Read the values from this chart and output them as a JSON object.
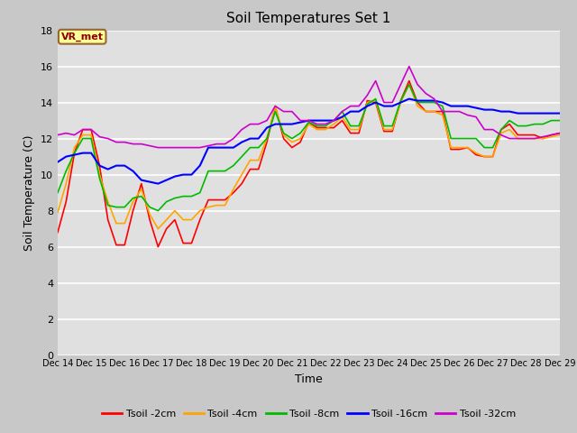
{
  "title": "Soil Temperatures Set 1",
  "xlabel": "Time",
  "ylabel": "Soil Temperature (C)",
  "ylim": [
    0,
    18
  ],
  "yticks": [
    0,
    2,
    4,
    6,
    8,
    10,
    12,
    14,
    16,
    18
  ],
  "fig_bg_color": "#c8c8c8",
  "plot_bg_color": "#e0e0e0",
  "annotation_text": "VR_met",
  "annotation_color": "#8B0000",
  "annotation_bg": "#FFFF99",
  "series_names": [
    "Tsoil -2cm",
    "Tsoil -4cm",
    "Tsoil -8cm",
    "Tsoil -16cm",
    "Tsoil -32cm"
  ],
  "series_colors": [
    "#FF0000",
    "#FFA500",
    "#00BB00",
    "#0000FF",
    "#CC00CC"
  ],
  "series_lw": [
    1.2,
    1.2,
    1.2,
    1.5,
    1.2
  ],
  "x_days": [
    14,
    14.25,
    14.5,
    14.75,
    15,
    15.25,
    15.5,
    15.75,
    16,
    16.25,
    16.5,
    16.75,
    17,
    17.25,
    17.5,
    17.75,
    18,
    18.25,
    18.5,
    18.75,
    19,
    19.25,
    19.5,
    19.75,
    20,
    20.25,
    20.5,
    20.75,
    21,
    21.25,
    21.5,
    21.75,
    22,
    22.25,
    22.5,
    22.75,
    23,
    23.25,
    23.5,
    23.75,
    24,
    24.25,
    24.5,
    24.75,
    25,
    25.25,
    25.5,
    25.75,
    26,
    26.25,
    26.5,
    26.75,
    27,
    27.25,
    27.5,
    27.75,
    28,
    28.25,
    28.5,
    28.75,
    29
  ],
  "tsoil_2cm": [
    6.8,
    8.5,
    11.2,
    12.5,
    12.5,
    10.5,
    7.5,
    6.1,
    6.1,
    8.0,
    9.5,
    7.5,
    6.0,
    7.0,
    7.5,
    6.2,
    6.2,
    7.5,
    8.6,
    8.6,
    8.6,
    9.0,
    9.5,
    10.3,
    10.3,
    11.8,
    13.8,
    12.0,
    11.5,
    11.8,
    12.9,
    12.6,
    12.6,
    12.6,
    13.0,
    12.3,
    12.3,
    14.1,
    14.0,
    12.4,
    12.4,
    14.1,
    15.2,
    14.0,
    13.5,
    13.5,
    13.5,
    11.4,
    11.4,
    11.5,
    11.1,
    11.0,
    11.0,
    12.5,
    12.8,
    12.2,
    12.2,
    12.2,
    12.0,
    12.2,
    12.3
  ],
  "tsoil_4cm": [
    7.9,
    9.5,
    11.5,
    12.2,
    12.2,
    10.0,
    8.5,
    7.3,
    7.3,
    8.5,
    9.2,
    7.8,
    7.0,
    7.5,
    8.0,
    7.5,
    7.5,
    8.0,
    8.2,
    8.3,
    8.3,
    9.2,
    10.0,
    10.8,
    10.8,
    12.0,
    13.8,
    12.2,
    11.8,
    12.0,
    12.8,
    12.5,
    12.5,
    12.8,
    13.2,
    12.5,
    12.5,
    14.0,
    14.1,
    12.5,
    12.5,
    14.0,
    15.0,
    13.8,
    13.5,
    13.5,
    13.3,
    11.5,
    11.5,
    11.5,
    11.2,
    11.0,
    11.0,
    12.3,
    12.5,
    12.0,
    12.0,
    12.0,
    12.0,
    12.1,
    12.2
  ],
  "tsoil_8cm": [
    9.0,
    10.2,
    11.2,
    12.0,
    12.0,
    9.8,
    8.3,
    8.2,
    8.2,
    8.7,
    8.8,
    8.2,
    8.0,
    8.5,
    8.7,
    8.8,
    8.8,
    9.0,
    10.2,
    10.2,
    10.2,
    10.5,
    11.0,
    11.5,
    11.5,
    12.0,
    13.5,
    12.3,
    12.0,
    12.3,
    12.9,
    12.7,
    12.7,
    13.0,
    13.5,
    12.7,
    12.7,
    13.9,
    14.2,
    12.7,
    12.7,
    14.1,
    15.0,
    14.0,
    14.0,
    14.0,
    13.8,
    12.0,
    12.0,
    12.0,
    12.0,
    11.5,
    11.5,
    12.5,
    13.0,
    12.7,
    12.7,
    12.8,
    12.8,
    13.0,
    13.0
  ],
  "tsoil_16cm": [
    10.7,
    11.0,
    11.1,
    11.2,
    11.2,
    10.5,
    10.3,
    10.5,
    10.5,
    10.2,
    9.7,
    9.6,
    9.5,
    9.7,
    9.9,
    10.0,
    10.0,
    10.5,
    11.5,
    11.5,
    11.5,
    11.5,
    11.8,
    12.0,
    12.0,
    12.6,
    12.8,
    12.8,
    12.8,
    12.9,
    13.0,
    13.0,
    13.0,
    13.0,
    13.2,
    13.5,
    13.5,
    13.8,
    14.0,
    13.8,
    13.8,
    14.0,
    14.2,
    14.1,
    14.1,
    14.1,
    14.0,
    13.8,
    13.8,
    13.8,
    13.7,
    13.6,
    13.6,
    13.5,
    13.5,
    13.4,
    13.4,
    13.4,
    13.4,
    13.4,
    13.4
  ],
  "tsoil_32cm": [
    12.2,
    12.3,
    12.2,
    12.5,
    12.5,
    12.1,
    12.0,
    11.8,
    11.8,
    11.7,
    11.7,
    11.6,
    11.5,
    11.5,
    11.5,
    11.5,
    11.5,
    11.5,
    11.6,
    11.7,
    11.7,
    12.0,
    12.5,
    12.8,
    12.8,
    13.0,
    13.8,
    13.5,
    13.5,
    13.0,
    13.0,
    12.8,
    12.8,
    13.0,
    13.5,
    13.8,
    13.8,
    14.4,
    15.2,
    14.0,
    14.0,
    15.0,
    16.0,
    15.0,
    14.5,
    14.2,
    13.5,
    13.5,
    13.5,
    13.3,
    13.2,
    12.5,
    12.5,
    12.2,
    12.0,
    12.0,
    12.0,
    12.0,
    12.1,
    12.2,
    12.3
  ]
}
